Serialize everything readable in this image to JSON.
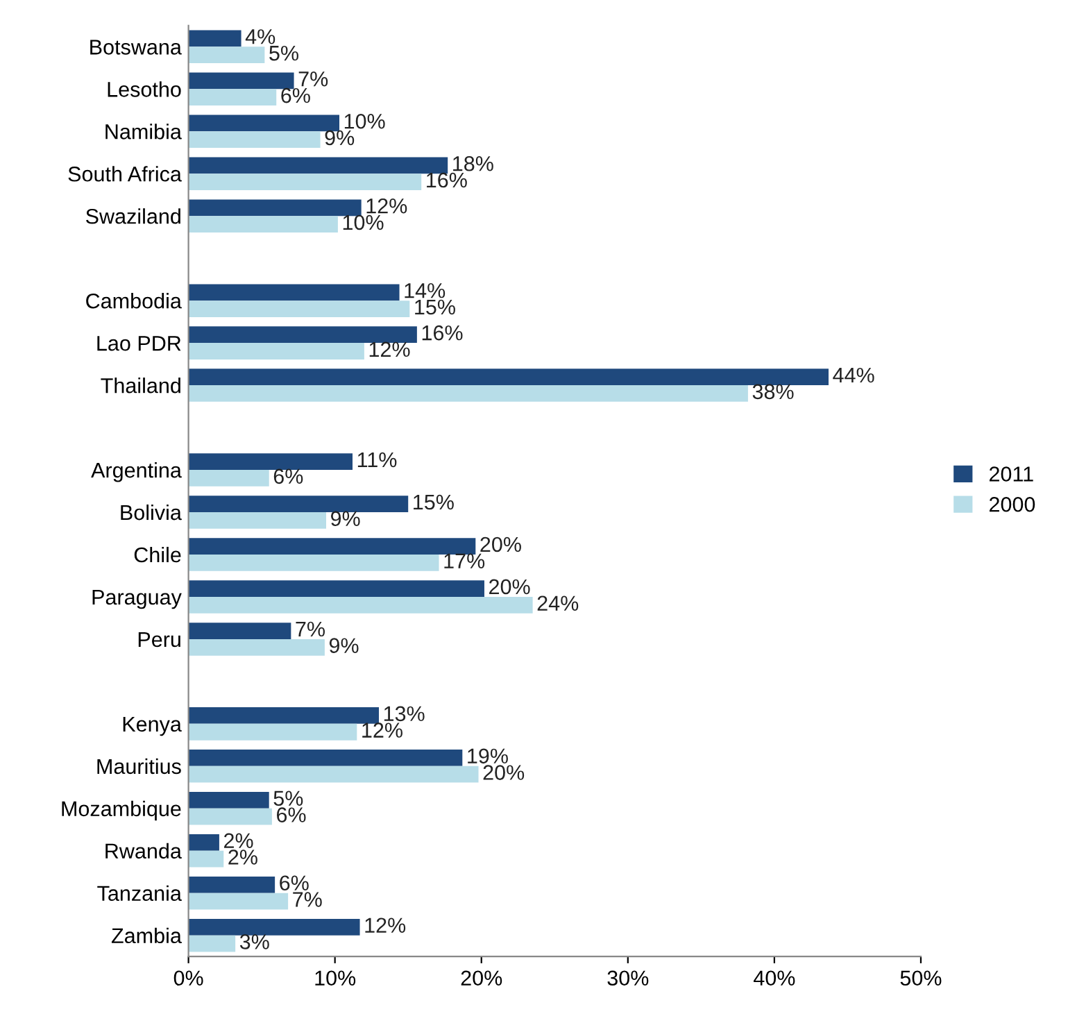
{
  "chart_data": {
    "type": "bar",
    "orientation": "horizontal",
    "categories": [
      "Botswana",
      "Lesotho",
      "Namibia",
      "South Africa",
      "Swaziland",
      null,
      "Cambodia",
      "Lao PDR",
      "Thailand",
      null,
      "Argentina",
      "Bolivia",
      "Chile",
      "Paraguay",
      "Peru",
      null,
      "Kenya",
      "Mauritius",
      "Mozambique",
      "Rwanda",
      "Tanzania",
      "Zambia"
    ],
    "series": [
      {
        "name": "2011",
        "color": "#1f497d",
        "values": [
          3.6,
          7.2,
          10.3,
          17.7,
          11.8,
          null,
          14.4,
          15.6,
          43.7,
          null,
          11.2,
          15.0,
          19.6,
          20.2,
          7.0,
          null,
          13.0,
          18.7,
          5.5,
          2.1,
          5.9,
          11.7
        ],
        "value_labels": [
          "4%",
          "7%",
          "10%",
          "18%",
          "12%",
          null,
          "14%",
          "16%",
          "44%",
          null,
          "11%",
          "15%",
          "20%",
          "20%",
          "7%",
          null,
          "13%",
          "19%",
          "5%",
          "2%",
          "6%",
          "12%"
        ]
      },
      {
        "name": "2000",
        "color": "#b7dde8",
        "values": [
          5.2,
          6.0,
          9.0,
          15.9,
          10.2,
          null,
          15.1,
          12.0,
          38.2,
          null,
          5.5,
          9.4,
          17.1,
          23.5,
          9.3,
          null,
          11.5,
          19.8,
          5.7,
          2.4,
          6.8,
          3.2
        ],
        "value_labels": [
          "5%",
          "6%",
          "9%",
          "16%",
          "10%",
          null,
          "15%",
          "12%",
          "38%",
          null,
          "6%",
          "9%",
          "17%",
          "24%",
          "9%",
          null,
          "12%",
          "20%",
          "6%",
          "2%",
          "7%",
          "3%"
        ]
      }
    ],
    "xlim": [
      0,
      50
    ],
    "xticks": [
      {
        "value": 0,
        "label": "0%"
      },
      {
        "value": 10,
        "label": "10%"
      },
      {
        "value": 20,
        "label": "20%"
      },
      {
        "value": 30,
        "label": "30%"
      },
      {
        "value": 40,
        "label": "40%"
      },
      {
        "value": 50,
        "label": "50%"
      }
    ],
    "legend": "right",
    "grid": false
  }
}
